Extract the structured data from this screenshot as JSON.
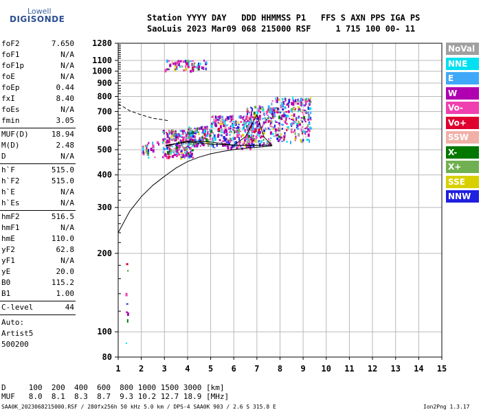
{
  "logo": {
    "line1": "Lowell",
    "line2": "DIGISONDE"
  },
  "header": {
    "line1": "Station YYYY DAY   DDD HHMMSS P1   FFS S AXN PPS IGA PS",
    "line2": "SaoLuis 2023 Mar09 068 215000 RSF     1 715 100 00- 11"
  },
  "params": {
    "group1": [
      {
        "name": "foF2",
        "value": "7.650"
      },
      {
        "name": "foF1",
        "value": "N/A"
      },
      {
        "name": "foF1p",
        "value": "N/A"
      },
      {
        "name": "foE",
        "value": "N/A"
      },
      {
        "name": "foEp",
        "value": "0.44"
      },
      {
        "name": "fxI",
        "value": "8.40"
      },
      {
        "name": "foEs",
        "value": "N/A"
      },
      {
        "name": "fmin",
        "value": "3.05"
      }
    ],
    "group2": [
      {
        "name": "MUF(D)",
        "value": "18.94"
      },
      {
        "name": "M(D)",
        "value": "2.48"
      },
      {
        "name": "D",
        "value": "N/A"
      }
    ],
    "group3": [
      {
        "name": "h`F",
        "value": "515.0"
      },
      {
        "name": "h`F2",
        "value": "515.0"
      },
      {
        "name": "h`E",
        "value": "N/A"
      },
      {
        "name": "h`Es",
        "value": "N/A"
      }
    ],
    "group4": [
      {
        "name": "hmF2",
        "value": "516.5"
      },
      {
        "name": "hmF1",
        "value": "N/A"
      },
      {
        "name": "hmE",
        "value": "110.0"
      },
      {
        "name": "yF2",
        "value": "62.8"
      },
      {
        "name": "yF1",
        "value": "N/A"
      },
      {
        "name": "yE",
        "value": "20.0"
      },
      {
        "name": "B0",
        "value": "115.2"
      },
      {
        "name": "B1",
        "value": "1.00"
      }
    ],
    "clevel": {
      "name": "C-level",
      "value": "44"
    },
    "auto": [
      "Auto:",
      "Artist5",
      "500200"
    ]
  },
  "legend": [
    {
      "label": "NoVal",
      "color": "#a0a0a0"
    },
    {
      "label": "NNE",
      "color": "#00e0f0"
    },
    {
      "label": "E",
      "color": "#40a8f8"
    },
    {
      "label": "W",
      "color": "#b000b0"
    },
    {
      "label": "Vo-",
      "color": "#f040b0"
    },
    {
      "label": "Vo+",
      "color": "#e00030"
    },
    {
      "label": "SSW",
      "color": "#f0b0a8"
    },
    {
      "label": "X-",
      "color": "#007800"
    },
    {
      "label": "X+",
      "color": "#70b050"
    },
    {
      "label": "SSE",
      "color": "#d8d000"
    },
    {
      "label": "NNW",
      "color": "#2020e0"
    }
  ],
  "chart_data": {
    "type": "scatter",
    "xlim": [
      1,
      15
    ],
    "ylim": [
      80,
      1280
    ],
    "yscale": "log",
    "x_ticks": [
      1,
      2,
      3,
      4,
      5,
      6,
      7,
      8,
      9,
      10,
      11,
      12,
      13,
      14,
      15
    ],
    "y_ticks": [
      80,
      100,
      200,
      300,
      400,
      500,
      600,
      700,
      800,
      900,
      1000,
      1100,
      1280
    ],
    "y_tick_labels": [
      "80",
      "100",
      "200",
      "300",
      "400",
      "500",
      "600",
      "700",
      "800",
      "900",
      "1000",
      "1100",
      "1280"
    ],
    "grid": true,
    "clusters": [
      {
        "fmin": 3.0,
        "fmax": 4.8,
        "hmin": 1010,
        "hmax": 1110,
        "n": 70
      },
      {
        "fmin": 2.9,
        "fmax": 4.2,
        "hmin": 470,
        "hmax": 600,
        "n": 240
      },
      {
        "fmin": 4.0,
        "fmax": 5.0,
        "hmin": 520,
        "hmax": 620,
        "n": 120
      },
      {
        "fmin": 5.0,
        "fmax": 6.8,
        "hmin": 510,
        "hmax": 680,
        "n": 260
      },
      {
        "fmin": 6.5,
        "fmax": 7.6,
        "hmin": 520,
        "hmax": 740,
        "n": 170
      },
      {
        "fmin": 7.6,
        "fmax": 9.3,
        "hmin": 540,
        "hmax": 800,
        "n": 260
      },
      {
        "fmin": 2.0,
        "fmax": 2.8,
        "hmin": 470,
        "hmax": 540,
        "n": 25
      },
      {
        "fmin": 1.3,
        "fmax": 1.4,
        "hmin": 82,
        "hmax": 190,
        "n": 8
      }
    ],
    "extraordinary_trace": [
      [
        3.05,
        515
      ],
      [
        4.0,
        540
      ],
      [
        5.0,
        535
      ],
      [
        6.0,
        520
      ],
      [
        6.5,
        560
      ],
      [
        7.0,
        680
      ],
      [
        7.3,
        560
      ],
      [
        7.65,
        520
      ],
      [
        6.0,
        520
      ],
      [
        5.0,
        525
      ],
      [
        4.0,
        535
      ],
      [
        3.05,
        520
      ]
    ],
    "true_height_profile": [
      [
        1.0,
        240
      ],
      [
        1.5,
        290
      ],
      [
        2.0,
        330
      ],
      [
        2.5,
        365
      ],
      [
        3.0,
        395
      ],
      [
        3.5,
        425
      ],
      [
        4.0,
        450
      ],
      [
        4.5,
        468
      ],
      [
        5.0,
        482
      ],
      [
        5.5,
        492
      ],
      [
        6.0,
        500
      ],
      [
        6.5,
        506
      ],
      [
        7.0,
        511
      ],
      [
        7.65,
        516.5
      ]
    ],
    "dashed_extension": [
      [
        1.0,
        750
      ],
      [
        1.5,
        705
      ],
      [
        2.0,
        680
      ],
      [
        2.5,
        660
      ],
      [
        3.0,
        650
      ],
      [
        3.2,
        645
      ]
    ]
  },
  "bottom": {
    "line1": "D     100  200  400  600  800 1000 1500 3000 [km]",
    "line2": "MUF   8.0  8.1  8.3  8.7  9.3 10.2 12.7 18.9 [MHz]",
    "footer_left": "SAA0K_2023068215000.RSF / 280fx256h 50 kHz 5.0 km / DPS-4 SAA0K 903 / 2.6 S 315.8 E",
    "footer_right": "Ion2Png 1.3.17"
  }
}
